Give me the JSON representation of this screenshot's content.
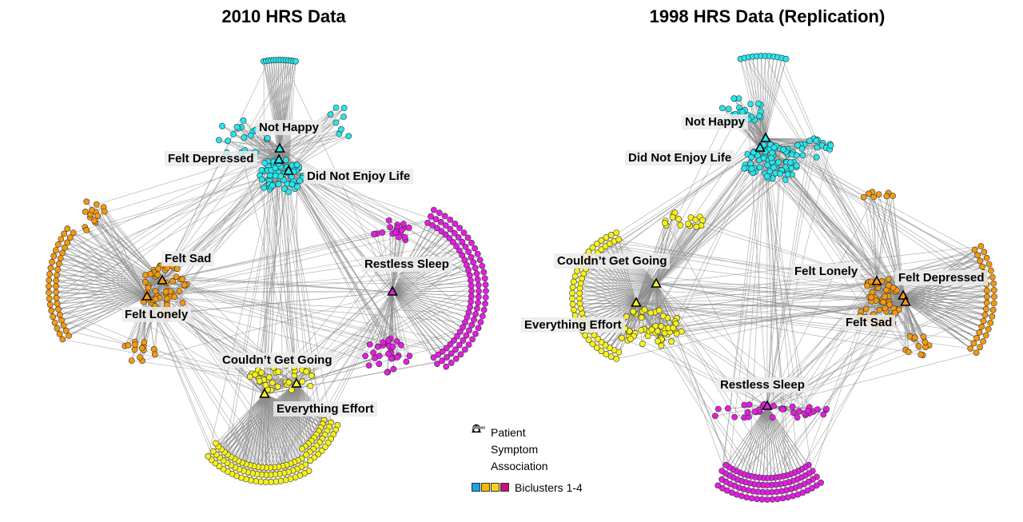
{
  "panels": [
    {
      "title": "2010 HRS Data",
      "symptoms": [
        {
          "label": "Not Happy",
          "cluster": 0
        },
        {
          "label": "Felt Depressed",
          "cluster": 0
        },
        {
          "label": "Did Not Enjoy Life",
          "cluster": 0
        },
        {
          "label": "Felt Sad",
          "cluster": 1
        },
        {
          "label": "Felt Lonely",
          "cluster": 1
        },
        {
          "label": "Restless Sleep",
          "cluster": 3
        },
        {
          "label": "Couldn’t Get Going",
          "cluster": 2
        },
        {
          "label": "Everything Effort",
          "cluster": 2
        }
      ]
    },
    {
      "title": "1998 HRS Data (Replication)",
      "symptoms": [
        {
          "label": "Not Happy",
          "cluster": 0
        },
        {
          "label": "Did Not Enjoy Life",
          "cluster": 0
        },
        {
          "label": "Couldn’t Get Going",
          "cluster": 2
        },
        {
          "label": "Everything Effort",
          "cluster": 2
        },
        {
          "label": "Felt Lonely",
          "cluster": 1
        },
        {
          "label": "Felt Depressed",
          "cluster": 1
        },
        {
          "label": "Felt Sad",
          "cluster": 1
        },
        {
          "label": "Restless Sleep",
          "cluster": 3
        }
      ]
    }
  ],
  "legend": {
    "patient_label": "Patient",
    "symptom_label": "Symptom",
    "association_label": "Association",
    "biclusters_label": "Biclusters 1-4"
  },
  "colors": {
    "cluster_colors": [
      "#27e6ec",
      "#f29a12",
      "#f7f21c",
      "#e31ee0"
    ],
    "edge": "#8c8c8c",
    "legend_swatches": [
      "#1aa3e8",
      "#f5b800",
      "#f7d21c",
      "#c8107a"
    ]
  }
}
